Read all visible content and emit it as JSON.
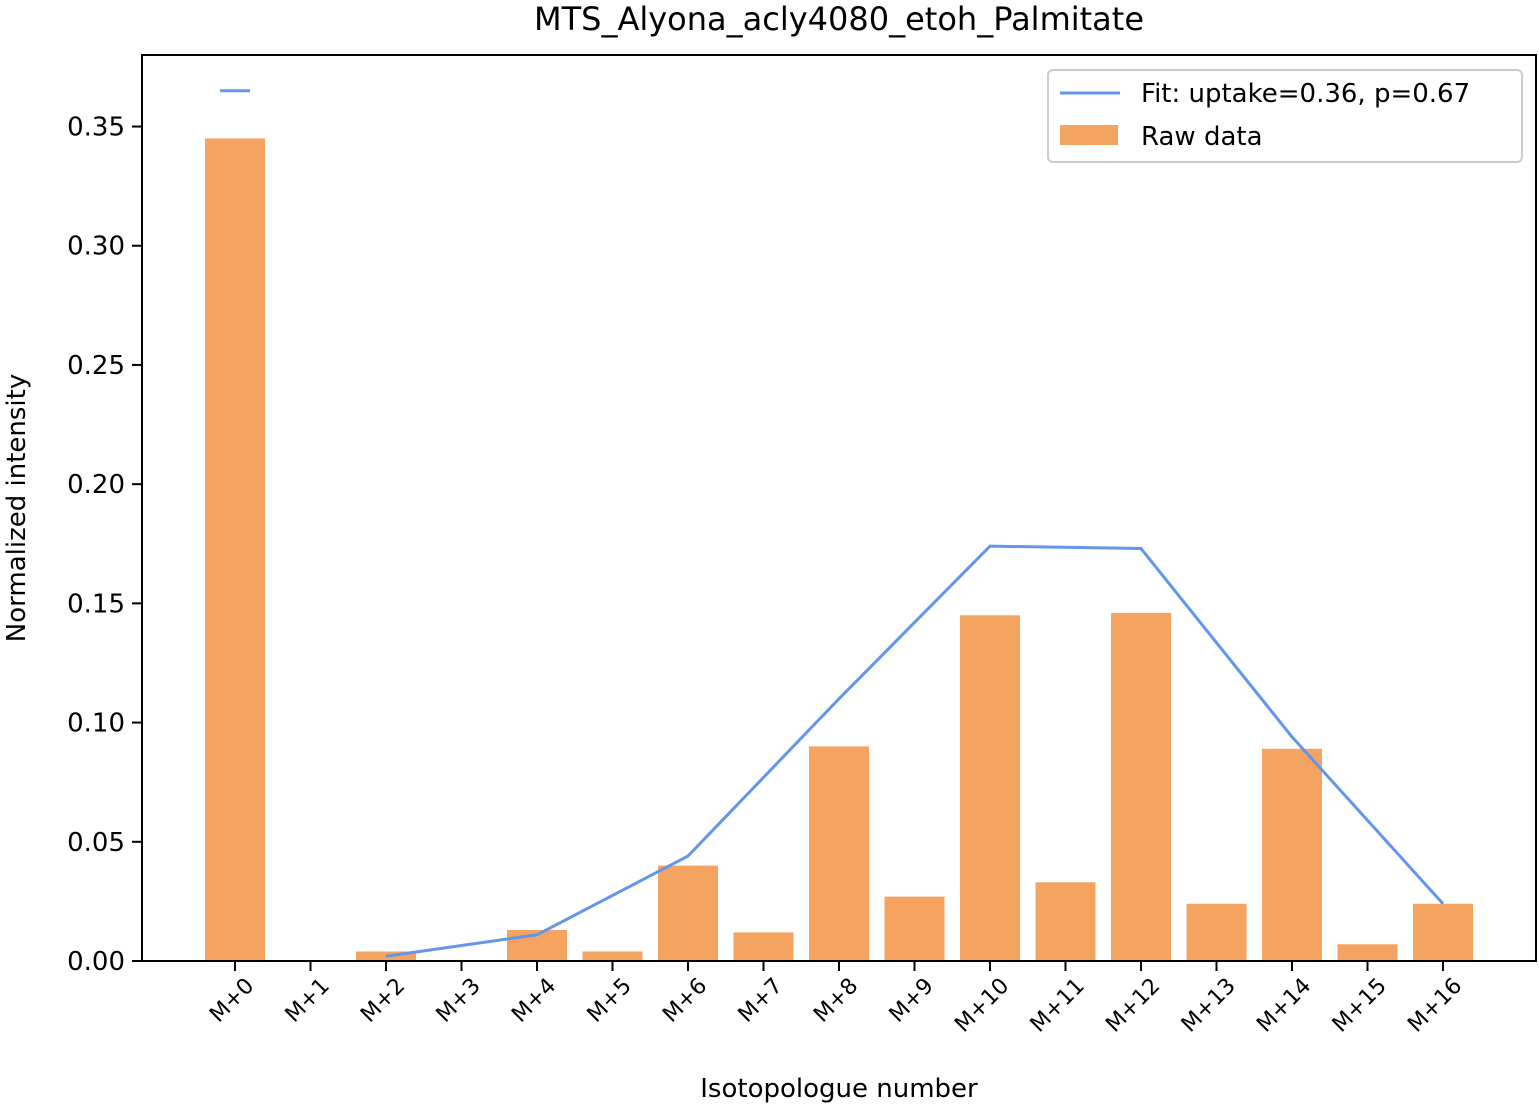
{
  "chart_data": {
    "type": "bar",
    "title": "MTS_Alyona_acly4080_etoh_Palmitate",
    "xlabel": "Isotopologue number",
    "ylabel": "Normalized intensity",
    "categories": [
      "M+0",
      "M+1",
      "M+2",
      "M+3",
      "M+4",
      "M+5",
      "M+6",
      "M+7",
      "M+8",
      "M+9",
      "M+10",
      "M+11",
      "M+12",
      "M+13",
      "M+14",
      "M+15",
      "M+16"
    ],
    "ylim": [
      0,
      0.38
    ],
    "yticks": [
      "0.00",
      "0.05",
      "0.10",
      "0.15",
      "0.20",
      "0.25",
      "0.30",
      "0.35"
    ],
    "series": [
      {
        "name": "Raw data",
        "kind": "bar",
        "color": "#F4A460",
        "values": [
          0.345,
          0,
          0.004,
          0,
          0.013,
          0.004,
          0.04,
          0.012,
          0.09,
          0.027,
          0.145,
          0.033,
          0.146,
          0.024,
          0.089,
          0.007,
          0.024
        ]
      },
      {
        "name": "Fit: uptake=0.36, p=0.67",
        "kind": "line",
        "color": "#6495ED",
        "x": [
          "M+2",
          "M+4",
          "M+6",
          "M+8",
          "M+10",
          "M+12",
          "M+14",
          "M+16"
        ],
        "values": [
          0.002,
          0.011,
          0.044,
          0.11,
          0.174,
          0.173,
          0.094,
          0.024
        ]
      }
    ],
    "marker": {
      "category": "M+0",
      "value": 0.365,
      "color": "#6495ED"
    },
    "legend": "top-right",
    "grid": false
  }
}
